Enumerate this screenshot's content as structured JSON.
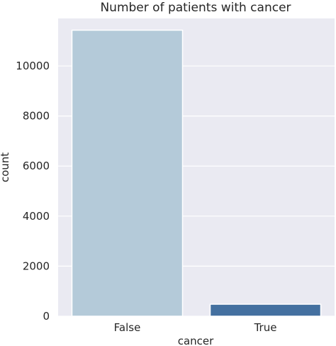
{
  "chart_data": {
    "type": "bar",
    "title": "Number of patients with cancer",
    "xlabel": "cancer",
    "ylabel": "count",
    "categories": [
      "False",
      "True"
    ],
    "values": [
      11430,
      480
    ],
    "ylim": [
      0,
      11900
    ],
    "yticks": [
      0,
      2000,
      4000,
      6000,
      8000,
      10000
    ],
    "ytick_labels": [
      "0",
      "2000",
      "4000",
      "6000",
      "8000",
      "10000"
    ],
    "grid": true,
    "colors": {
      "plot_background": "#EAEAF2",
      "grid": "#FFFFFF",
      "bars": [
        "#B4CAD9",
        "#4470A0"
      ],
      "text": "#262626"
    }
  }
}
